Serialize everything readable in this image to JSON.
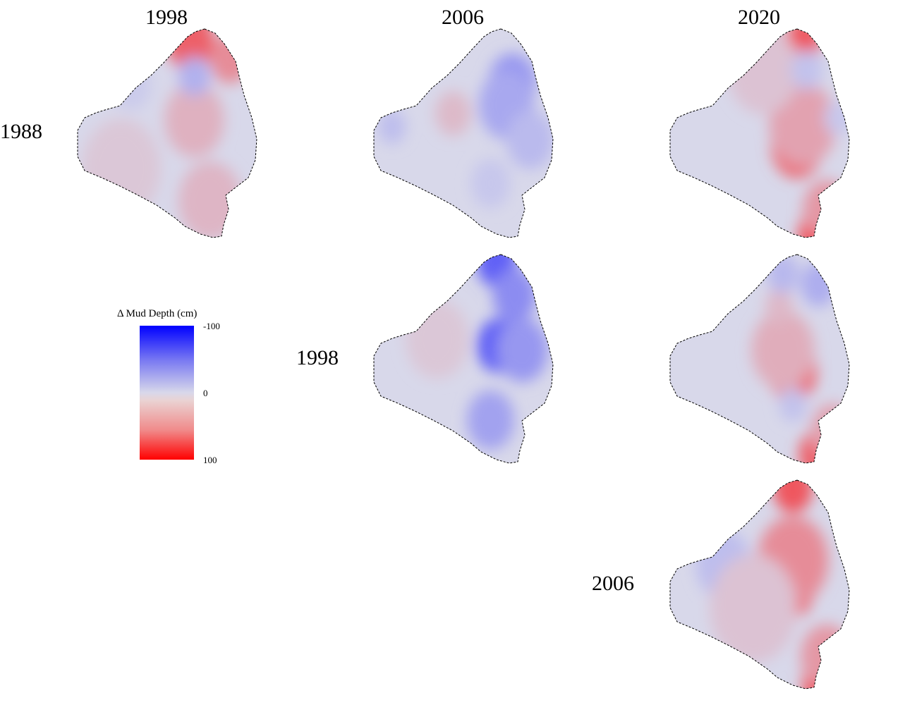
{
  "chart_data": {
    "type": "heatmap",
    "legend": {
      "title": "Δ Mud Depth (cm)",
      "ticks": [
        "-100",
        "0",
        "100"
      ],
      "range": [
        -100,
        100
      ],
      "color_low": "#0000ff",
      "color_mid": "#d8d8ea",
      "color_high": "#ff0000"
    },
    "column_labels": [
      "1998",
      "2006",
      "2020"
    ],
    "row_labels": [
      "1988",
      "1998",
      "2006"
    ],
    "panels": [
      {
        "from": "1988",
        "to": "1998",
        "blobs": [
          {
            "u": 0.6,
            "v": 0.07,
            "c": 55,
            "r": 0.12
          },
          {
            "u": 0.8,
            "v": 0.15,
            "c": 35,
            "r": 0.1
          },
          {
            "u": 0.62,
            "v": 0.43,
            "c": 18,
            "r": 0.15
          },
          {
            "u": 0.7,
            "v": 0.8,
            "c": 16,
            "r": 0.16
          },
          {
            "u": 0.25,
            "v": 0.65,
            "c": 8,
            "r": 0.2
          },
          {
            "u": 0.62,
            "v": 0.23,
            "c": -18,
            "r": 0.08
          },
          {
            "u": 0.3,
            "v": 0.27,
            "c": -6,
            "r": 0.1
          }
        ]
      },
      {
        "from": "1988",
        "to": "2006",
        "blobs": [
          {
            "u": 0.73,
            "v": 0.26,
            "c": -30,
            "r": 0.12
          },
          {
            "u": 0.7,
            "v": 0.36,
            "c": -22,
            "r": 0.14
          },
          {
            "u": 0.82,
            "v": 0.52,
            "c": -14,
            "r": 0.12
          },
          {
            "u": 0.43,
            "v": 0.4,
            "c": 14,
            "r": 0.09
          },
          {
            "u": 0.12,
            "v": 0.46,
            "c": -12,
            "r": 0.07
          },
          {
            "u": 0.62,
            "v": 0.72,
            "c": -8,
            "r": 0.1
          }
        ]
      },
      {
        "from": "1988",
        "to": "2020",
        "blobs": [
          {
            "u": 0.7,
            "v": 0.07,
            "c": 60,
            "r": 0.09
          },
          {
            "u": 0.67,
            "v": 0.55,
            "c": 50,
            "r": 0.13
          },
          {
            "u": 0.7,
            "v": 0.45,
            "c": 25,
            "r": 0.17
          },
          {
            "u": 0.78,
            "v": 0.95,
            "c": 70,
            "r": 0.1
          },
          {
            "u": 0.82,
            "v": 0.84,
            "c": 30,
            "r": 0.12
          },
          {
            "u": 0.5,
            "v": 0.2,
            "c": 10,
            "r": 0.18
          },
          {
            "u": 0.72,
            "v": 0.2,
            "c": -10,
            "r": 0.08
          },
          {
            "u": 0.88,
            "v": 0.42,
            "c": -8,
            "r": 0.07
          }
        ]
      },
      {
        "from": "1998",
        "to": "2006",
        "blobs": [
          {
            "u": 0.65,
            "v": 0.05,
            "c": -55,
            "r": 0.1
          },
          {
            "u": 0.74,
            "v": 0.2,
            "c": -35,
            "r": 0.11
          },
          {
            "u": 0.66,
            "v": 0.43,
            "c": -55,
            "r": 0.11
          },
          {
            "u": 0.78,
            "v": 0.45,
            "c": -30,
            "r": 0.13
          },
          {
            "u": 0.62,
            "v": 0.77,
            "c": -25,
            "r": 0.12
          },
          {
            "u": 0.35,
            "v": 0.4,
            "c": 8,
            "r": 0.16
          }
        ]
      },
      {
        "from": "1998",
        "to": "2020",
        "blobs": [
          {
            "u": 0.65,
            "v": 0.55,
            "c": 55,
            "r": 0.12
          },
          {
            "u": 0.6,
            "v": 0.45,
            "c": 20,
            "r": 0.16
          },
          {
            "u": 0.58,
            "v": 0.25,
            "c": 15,
            "r": 0.07
          },
          {
            "u": 0.78,
            "v": 0.93,
            "c": 55,
            "r": 0.1
          },
          {
            "u": 0.85,
            "v": 0.82,
            "c": 25,
            "r": 0.11
          },
          {
            "u": 0.78,
            "v": 0.15,
            "c": -20,
            "r": 0.09
          },
          {
            "u": 0.6,
            "v": 0.1,
            "c": -15,
            "r": 0.08
          },
          {
            "u": 0.65,
            "v": 0.7,
            "c": -10,
            "r": 0.07
          }
        ]
      },
      {
        "from": "2006",
        "to": "2020",
        "blobs": [
          {
            "u": 0.63,
            "v": 0.5,
            "c": 60,
            "r": 0.13
          },
          {
            "u": 0.65,
            "v": 0.38,
            "c": 35,
            "r": 0.18
          },
          {
            "u": 0.65,
            "v": 0.05,
            "c": 60,
            "r": 0.1
          },
          {
            "u": 0.8,
            "v": 0.94,
            "c": 70,
            "r": 0.1
          },
          {
            "u": 0.82,
            "v": 0.82,
            "c": 30,
            "r": 0.13
          },
          {
            "u": 0.3,
            "v": 0.4,
            "c": -12,
            "r": 0.14
          },
          {
            "u": 0.45,
            "v": 0.6,
            "c": 10,
            "r": 0.22
          }
        ]
      }
    ]
  }
}
